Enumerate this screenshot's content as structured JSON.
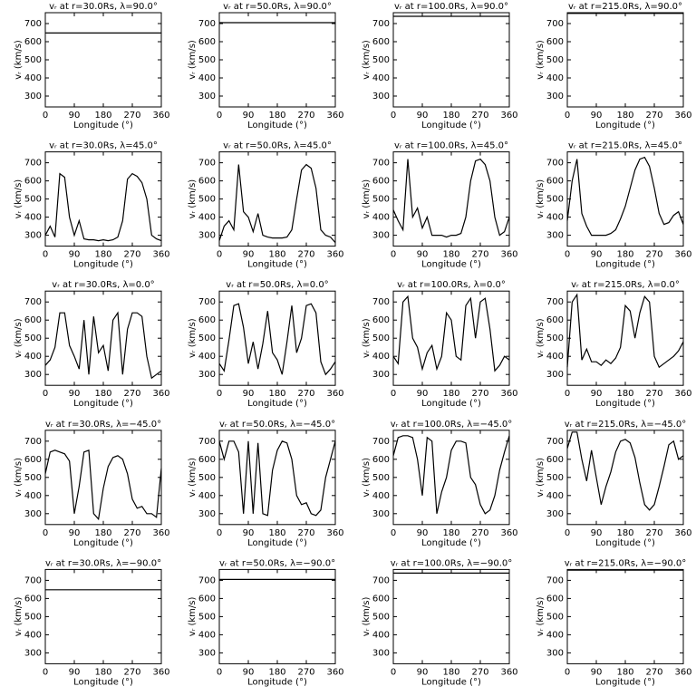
{
  "chart_data": [
    {
      "type": "line",
      "title": "vᵣ at r=30.0Rs, λ=90.0°",
      "xlabel": "Longitude (°)",
      "ylabel": "vᵣ (km/s)",
      "x": [
        0,
        360
      ],
      "values": [
        648,
        648
      ],
      "color": "#000000",
      "xlim": [
        0,
        360
      ],
      "xticks": [
        0,
        90,
        180,
        270,
        360
      ],
      "ylim": [
        240,
        760
      ],
      "yticks": [
        300,
        400,
        500,
        600,
        700
      ]
    },
    {
      "type": "line",
      "title": "vᵣ at r=50.0Rs, λ=90.0°",
      "xlabel": "Longitude (°)",
      "ylabel": "vᵣ (km/s)",
      "x": [
        0,
        360
      ],
      "values": [
        705,
        705
      ],
      "color": "#000000",
      "xlim": [
        0,
        360
      ],
      "xticks": [
        0,
        90,
        180,
        270,
        360
      ],
      "ylim": [
        240,
        760
      ],
      "yticks": [
        300,
        400,
        500,
        600,
        700
      ]
    },
    {
      "type": "line",
      "title": "vᵣ at r=100.0Rs, λ=90.0°",
      "xlabel": "Longitude (°)",
      "ylabel": "vᵣ (km/s)",
      "x": [
        0,
        360
      ],
      "values": [
        740,
        740
      ],
      "color": "#000000",
      "xlim": [
        0,
        360
      ],
      "xticks": [
        0,
        90,
        180,
        270,
        360
      ],
      "ylim": [
        240,
        760
      ],
      "yticks": [
        300,
        400,
        500,
        600,
        700
      ]
    },
    {
      "type": "line",
      "title": "vᵣ at r=215.0Rs, λ=90.0°",
      "xlabel": "Longitude (°)",
      "ylabel": "vᵣ (km/s)",
      "x": [
        0,
        360
      ],
      "values": [
        756,
        756
      ],
      "color": "#000000",
      "xlim": [
        0,
        360
      ],
      "xticks": [
        0,
        90,
        180,
        270,
        360
      ],
      "ylim": [
        240,
        760
      ],
      "yticks": [
        300,
        400,
        500,
        600,
        700
      ]
    },
    {
      "type": "line",
      "title": "vᵣ at r=30.0Rs, λ=45.0°",
      "xlabel": "Longitude (°)",
      "ylabel": "vᵣ (km/s)",
      "x": [
        0,
        15,
        30,
        45,
        60,
        75,
        90,
        105,
        120,
        135,
        150,
        165,
        180,
        195,
        210,
        225,
        240,
        255,
        270,
        285,
        300,
        315,
        330,
        345,
        360
      ],
      "values": [
        300,
        350,
        290,
        640,
        620,
        400,
        300,
        380,
        280,
        275,
        275,
        270,
        275,
        270,
        275,
        290,
        380,
        610,
        640,
        625,
        590,
        500,
        300,
        280,
        270
      ],
      "color": "#000000",
      "xlim": [
        0,
        360
      ],
      "xticks": [
        0,
        90,
        180,
        270,
        360
      ],
      "ylim": [
        240,
        760
      ],
      "yticks": [
        300,
        400,
        500,
        600,
        700
      ]
    },
    {
      "type": "line",
      "title": "vᵣ at r=50.0Rs, λ=45.0°",
      "xlabel": "Longitude (°)",
      "ylabel": "vᵣ (km/s)",
      "x": [
        0,
        15,
        30,
        45,
        60,
        75,
        90,
        105,
        120,
        135,
        150,
        165,
        180,
        195,
        210,
        225,
        240,
        255,
        270,
        285,
        300,
        315,
        330,
        345,
        360
      ],
      "values": [
        270,
        350,
        380,
        330,
        690,
        430,
        400,
        320,
        420,
        300,
        290,
        285,
        285,
        285,
        290,
        330,
        500,
        660,
        690,
        670,
        560,
        330,
        300,
        290,
        260
      ],
      "color": "#000000",
      "xlim": [
        0,
        360
      ],
      "xticks": [
        0,
        90,
        180,
        270,
        360
      ],
      "ylim": [
        240,
        760
      ],
      "yticks": [
        300,
        400,
        500,
        600,
        700
      ]
    },
    {
      "type": "line",
      "title": "vᵣ at r=100.0Rs, λ=45.0°",
      "xlabel": "Longitude (°)",
      "ylabel": "vᵣ (km/s)",
      "x": [
        0,
        15,
        30,
        45,
        60,
        75,
        90,
        105,
        120,
        135,
        150,
        165,
        180,
        195,
        210,
        225,
        240,
        255,
        270,
        285,
        300,
        315,
        330,
        345,
        360
      ],
      "values": [
        440,
        380,
        330,
        720,
        400,
        450,
        340,
        400,
        300,
        300,
        300,
        290,
        300,
        300,
        310,
        400,
        600,
        710,
        720,
        690,
        600,
        400,
        300,
        320,
        400
      ],
      "color": "#000000",
      "xlim": [
        0,
        360
      ],
      "xticks": [
        0,
        90,
        180,
        270,
        360
      ],
      "ylim": [
        240,
        760
      ],
      "yticks": [
        300,
        400,
        500,
        600,
        700
      ]
    },
    {
      "type": "line",
      "title": "vᵣ at r=215.0Rs, λ=45.0°",
      "xlabel": "Longitude (°)",
      "ylabel": "vᵣ (km/s)",
      "x": [
        0,
        15,
        30,
        45,
        60,
        75,
        90,
        105,
        120,
        135,
        150,
        165,
        180,
        195,
        210,
        225,
        240,
        255,
        270,
        285,
        300,
        315,
        330,
        345,
        360
      ],
      "values": [
        380,
        600,
        720,
        420,
        350,
        300,
        300,
        300,
        300,
        310,
        330,
        390,
        460,
        560,
        660,
        720,
        730,
        680,
        560,
        420,
        360,
        370,
        410,
        430,
        360
      ],
      "color": "#000000",
      "xlim": [
        0,
        360
      ],
      "xticks": [
        0,
        90,
        180,
        270,
        360
      ],
      "ylim": [
        240,
        760
      ],
      "yticks": [
        300,
        400,
        500,
        600,
        700
      ]
    },
    {
      "type": "line",
      "title": "vᵣ at r=30.0Rs, λ=0.0°",
      "xlabel": "Longitude (°)",
      "ylabel": "vᵣ (km/s)",
      "x": [
        0,
        15,
        30,
        45,
        60,
        75,
        90,
        105,
        120,
        135,
        150,
        165,
        180,
        195,
        210,
        225,
        240,
        255,
        270,
        285,
        300,
        315,
        330,
        345,
        360
      ],
      "values": [
        350,
        380,
        450,
        640,
        640,
        460,
        400,
        330,
        600,
        300,
        620,
        420,
        460,
        320,
        600,
        640,
        300,
        550,
        640,
        640,
        620,
        400,
        280,
        300,
        320
      ],
      "color": "#000000",
      "xlim": [
        0,
        360
      ],
      "xticks": [
        0,
        90,
        180,
        270,
        360
      ],
      "ylim": [
        240,
        760
      ],
      "yticks": [
        300,
        400,
        500,
        600,
        700
      ]
    },
    {
      "type": "line",
      "title": "vᵣ at r=50.0Rs, λ=0.0°",
      "xlabel": "Longitude (°)",
      "ylabel": "vᵣ (km/s)",
      "x": [
        0,
        15,
        30,
        45,
        60,
        75,
        90,
        105,
        120,
        135,
        150,
        165,
        180,
        195,
        210,
        225,
        240,
        255,
        270,
        285,
        300,
        315,
        330,
        345,
        360
      ],
      "values": [
        360,
        320,
        490,
        680,
        690,
        560,
        360,
        480,
        330,
        470,
        650,
        420,
        380,
        300,
        480,
        680,
        420,
        500,
        680,
        690,
        640,
        370,
        300,
        330,
        370
      ],
      "color": "#000000",
      "xlim": [
        0,
        360
      ],
      "xticks": [
        0,
        90,
        180,
        270,
        360
      ],
      "ylim": [
        240,
        760
      ],
      "yticks": [
        300,
        400,
        500,
        600,
        700
      ]
    },
    {
      "type": "line",
      "title": "vᵣ at r=100.0Rs, λ=0.0°",
      "xlabel": "Longitude (°)",
      "ylabel": "vᵣ (km/s)",
      "x": [
        0,
        15,
        30,
        45,
        60,
        75,
        90,
        105,
        120,
        135,
        150,
        165,
        180,
        195,
        210,
        225,
        240,
        255,
        270,
        285,
        300,
        315,
        330,
        345,
        360
      ],
      "values": [
        400,
        360,
        700,
        730,
        500,
        450,
        330,
        420,
        460,
        330,
        400,
        640,
        600,
        400,
        380,
        680,
        720,
        500,
        700,
        720,
        550,
        320,
        350,
        400,
        380
      ],
      "color": "#000000",
      "xlim": [
        0,
        360
      ],
      "xticks": [
        0,
        90,
        180,
        270,
        360
      ],
      "ylim": [
        240,
        760
      ],
      "yticks": [
        300,
        400,
        500,
        600,
        700
      ]
    },
    {
      "type": "line",
      "title": "vᵣ at r=215.0Rs, λ=0.0°",
      "xlabel": "Longitude (°)",
      "ylabel": "vᵣ (km/s)",
      "x": [
        0,
        15,
        30,
        45,
        60,
        75,
        90,
        105,
        120,
        135,
        150,
        165,
        180,
        195,
        210,
        225,
        240,
        255,
        270,
        285,
        300,
        315,
        330,
        345,
        360
      ],
      "values": [
        340,
        700,
        740,
        380,
        440,
        370,
        370,
        350,
        380,
        360,
        390,
        450,
        680,
        650,
        500,
        640,
        730,
        700,
        400,
        340,
        360,
        380,
        400,
        430,
        480
      ],
      "color": "#000000",
      "xlim": [
        0,
        360
      ],
      "xticks": [
        0,
        90,
        180,
        270,
        360
      ],
      "ylim": [
        240,
        760
      ],
      "yticks": [
        300,
        400,
        500,
        600,
        700
      ]
    },
    {
      "type": "line",
      "title": "vᵣ at r=30.0Rs, λ=−45.0°",
      "xlabel": "Longitude (°)",
      "ylabel": "vᵣ (km/s)",
      "x": [
        0,
        15,
        30,
        45,
        60,
        75,
        90,
        105,
        120,
        135,
        150,
        165,
        180,
        195,
        210,
        225,
        240,
        255,
        270,
        285,
        300,
        315,
        330,
        345,
        360
      ],
      "values": [
        520,
        640,
        650,
        640,
        630,
        590,
        300,
        450,
        640,
        650,
        300,
        270,
        440,
        560,
        610,
        620,
        600,
        520,
        380,
        330,
        340,
        300,
        300,
        280,
        550
      ],
      "color": "#000000",
      "xlim": [
        0,
        360
      ],
      "xticks": [
        0,
        90,
        180,
        270,
        360
      ],
      "ylim": [
        240,
        760
      ],
      "yticks": [
        300,
        400,
        500,
        600,
        700
      ]
    },
    {
      "type": "line",
      "title": "vᵣ at r=50.0Rs, λ=−45.0°",
      "xlabel": "Longitude (°)",
      "ylabel": "vᵣ (km/s)",
      "x": [
        0,
        15,
        30,
        45,
        60,
        75,
        90,
        105,
        120,
        135,
        150,
        165,
        180,
        195,
        210,
        225,
        240,
        255,
        270,
        285,
        300,
        315,
        330,
        345,
        360
      ],
      "values": [
        700,
        600,
        700,
        700,
        640,
        300,
        700,
        300,
        690,
        300,
        290,
        540,
        650,
        700,
        690,
        600,
        400,
        350,
        360,
        300,
        290,
        320,
        500,
        600,
        700
      ],
      "color": "#000000",
      "xlim": [
        0,
        360
      ],
      "xticks": [
        0,
        90,
        180,
        270,
        360
      ],
      "ylim": [
        240,
        760
      ],
      "yticks": [
        300,
        400,
        500,
        600,
        700
      ]
    },
    {
      "type": "line",
      "title": "vᵣ at r=100.0Rs, λ=−45.0°",
      "xlabel": "Longitude (°)",
      "ylabel": "vᵣ (km/s)",
      "x": [
        0,
        15,
        30,
        45,
        60,
        75,
        90,
        105,
        120,
        135,
        150,
        165,
        180,
        195,
        210,
        225,
        240,
        255,
        270,
        285,
        300,
        315,
        330,
        345,
        360
      ],
      "values": [
        620,
        720,
        730,
        730,
        720,
        600,
        400,
        720,
        700,
        300,
        420,
        500,
        650,
        700,
        700,
        690,
        500,
        460,
        350,
        300,
        320,
        400,
        540,
        640,
        730
      ],
      "color": "#000000",
      "xlim": [
        0,
        360
      ],
      "xticks": [
        0,
        90,
        180,
        270,
        360
      ],
      "ylim": [
        240,
        760
      ],
      "yticks": [
        300,
        400,
        500,
        600,
        700
      ]
    },
    {
      "type": "line",
      "title": "vᵣ at r=215.0Rs, λ=−45.0°",
      "xlabel": "Longitude (°)",
      "ylabel": "vᵣ (km/s)",
      "x": [
        0,
        15,
        30,
        45,
        60,
        75,
        90,
        105,
        120,
        135,
        150,
        165,
        180,
        195,
        210,
        225,
        240,
        255,
        270,
        285,
        300,
        315,
        330,
        345,
        360
      ],
      "values": [
        660,
        750,
        750,
        600,
        480,
        650,
        500,
        350,
        450,
        530,
        640,
        700,
        710,
        690,
        610,
        470,
        350,
        320,
        350,
        450,
        560,
        680,
        700,
        600,
        620
      ],
      "color": "#000000",
      "xlim": [
        0,
        360
      ],
      "xticks": [
        0,
        90,
        180,
        270,
        360
      ],
      "ylim": [
        240,
        760
      ],
      "yticks": [
        300,
        400,
        500,
        600,
        700
      ]
    },
    {
      "type": "line",
      "title": "vᵣ at r=30.0Rs, λ=−90.0°",
      "xlabel": "Longitude (°)",
      "ylabel": "vᵣ (km/s)",
      "x": [
        0,
        360
      ],
      "values": [
        648,
        648
      ],
      "color": "#000000",
      "xlim": [
        0,
        360
      ],
      "xticks": [
        0,
        90,
        180,
        270,
        360
      ],
      "ylim": [
        240,
        760
      ],
      "yticks": [
        300,
        400,
        500,
        600,
        700
      ]
    },
    {
      "type": "line",
      "title": "vᵣ at r=50.0Rs, λ=−90.0°",
      "xlabel": "Longitude (°)",
      "ylabel": "vᵣ (km/s)",
      "x": [
        0,
        360
      ],
      "values": [
        705,
        705
      ],
      "color": "#000000",
      "xlim": [
        0,
        360
      ],
      "xticks": [
        0,
        90,
        180,
        270,
        360
      ],
      "ylim": [
        240,
        760
      ],
      "yticks": [
        300,
        400,
        500,
        600,
        700
      ]
    },
    {
      "type": "line",
      "title": "vᵣ at r=100.0Rs, λ=−90.0°",
      "xlabel": "Longitude (°)",
      "ylabel": "vᵣ (km/s)",
      "x": [
        0,
        360
      ],
      "values": [
        740,
        740
      ],
      "color": "#000000",
      "xlim": [
        0,
        360
      ],
      "xticks": [
        0,
        90,
        180,
        270,
        360
      ],
      "ylim": [
        240,
        760
      ],
      "yticks": [
        300,
        400,
        500,
        600,
        700
      ]
    },
    {
      "type": "line",
      "title": "vᵣ at r=215.0Rs, λ=−90.0°",
      "xlabel": "Longitude (°)",
      "ylabel": "vᵣ (km/s)",
      "x": [
        0,
        360
      ],
      "values": [
        756,
        756
      ],
      "color": "#000000",
      "xlim": [
        0,
        360
      ],
      "xticks": [
        0,
        90,
        180,
        270,
        360
      ],
      "ylim": [
        240,
        760
      ],
      "yticks": [
        300,
        400,
        500,
        600,
        700
      ]
    }
  ]
}
